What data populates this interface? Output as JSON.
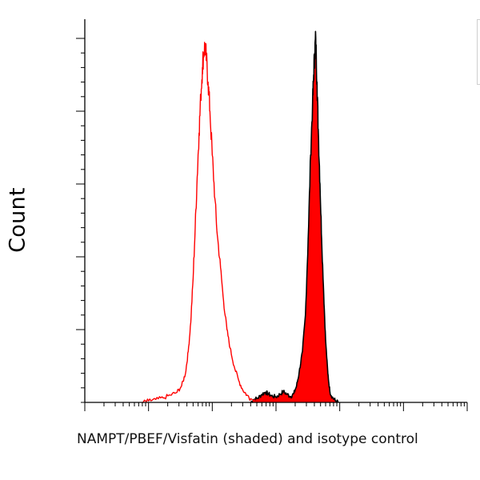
{
  "chart_data": {
    "type": "area",
    "title": "",
    "xlabel": "NAMPT/PBEF/Visfatin (shaded) and isotype control",
    "ylabel": "Count",
    "x_scale": "log",
    "xlim": [
      0.1,
      100000
    ],
    "ylim": [
      0,
      100
    ],
    "grid": false,
    "legend": "none",
    "series": [
      {
        "fill": "#ff0000",
        "line": "#000000",
        "points": [
          [
            40,
            0
          ],
          [
            45,
            0.8
          ],
          [
            52,
            1.2
          ],
          [
            60,
            2.2
          ],
          [
            68,
            2.8
          ],
          [
            75,
            2.4
          ],
          [
            85,
            1.8
          ],
          [
            100,
            1.5
          ],
          [
            115,
            2.2
          ],
          [
            130,
            3.0
          ],
          [
            150,
            2.2
          ],
          [
            170,
            1.6
          ],
          [
            190,
            2.4
          ],
          [
            210,
            4.5
          ],
          [
            230,
            8
          ],
          [
            260,
            14
          ],
          [
            290,
            24
          ],
          [
            320,
            45
          ],
          [
            350,
            68
          ],
          [
            375,
            82
          ],
          [
            390,
            90
          ],
          [
            405,
            96
          ],
          [
            420,
            100
          ],
          [
            440,
            88
          ],
          [
            460,
            75
          ],
          [
            490,
            60
          ],
          [
            520,
            45
          ],
          [
            560,
            30
          ],
          [
            600,
            17
          ],
          [
            650,
            8
          ],
          [
            700,
            3
          ],
          [
            760,
            1.5
          ],
          [
            850,
            0.5
          ],
          [
            950,
            0
          ]
        ]
      },
      {
        "line": "#ff0000",
        "points": [
          [
            0.8,
            0
          ],
          [
            1.0,
            0.4
          ],
          [
            1.3,
            0.8
          ],
          [
            1.7,
            1.2
          ],
          [
            2.2,
            2.0
          ],
          [
            2.8,
            2.8
          ],
          [
            3.3,
            4.5
          ],
          [
            3.8,
            8
          ],
          [
            4.2,
            14
          ],
          [
            4.6,
            22
          ],
          [
            5.0,
            34
          ],
          [
            5.4,
            48
          ],
          [
            5.8,
            62
          ],
          [
            6.2,
            74
          ],
          [
            6.6,
            84
          ],
          [
            7.0,
            92
          ],
          [
            7.3,
            96
          ],
          [
            7.7,
            98
          ],
          [
            8.1,
            94
          ],
          [
            8.6,
            88
          ],
          [
            9.2,
            80
          ],
          [
            10,
            68
          ],
          [
            11,
            56
          ],
          [
            12,
            46
          ],
          [
            13.5,
            37
          ],
          [
            15,
            28
          ],
          [
            17,
            20
          ],
          [
            19,
            15
          ],
          [
            22,
            10
          ],
          [
            26,
            6
          ],
          [
            30,
            3.5
          ],
          [
            35,
            2
          ],
          [
            40,
            1
          ],
          [
            50,
            0.4
          ],
          [
            60,
            0
          ]
        ]
      }
    ]
  }
}
